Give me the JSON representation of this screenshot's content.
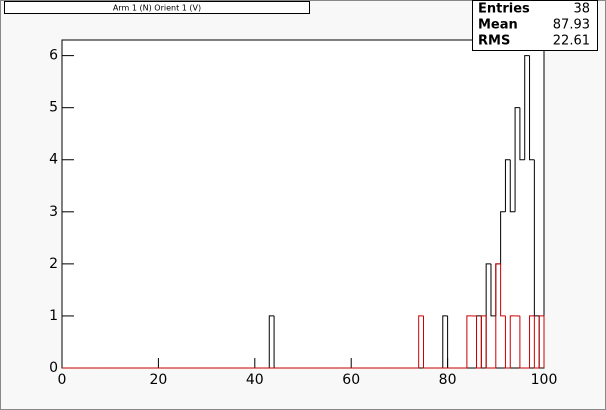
{
  "chart_data": {
    "type": "histogram",
    "title": "Arm 1 (N) Orient 1 (V)",
    "bins": [
      0,
      1,
      2,
      3,
      4,
      5,
      6,
      7,
      8,
      9,
      10,
      11,
      12,
      13,
      14,
      15,
      16,
      17,
      18,
      19,
      20,
      21,
      22,
      23,
      24,
      25,
      26,
      27,
      28,
      29,
      30,
      31,
      32,
      33,
      34,
      35,
      36,
      37,
      38,
      39,
      40,
      41,
      42,
      43,
      44,
      45,
      46,
      47,
      48,
      49,
      50,
      51,
      52,
      53,
      54,
      55,
      56,
      57,
      58,
      59,
      60,
      61,
      62,
      63,
      64,
      65,
      66,
      67,
      68,
      69,
      70,
      71,
      72,
      73,
      74,
      75,
      76,
      77,
      78,
      79,
      80,
      81,
      82,
      83,
      84,
      85,
      86,
      87,
      88,
      89,
      90,
      91,
      92,
      93,
      94,
      95,
      96,
      97,
      98,
      99,
      100
    ],
    "series": [
      {
        "color": "#000000",
        "values": [
          0,
          0,
          0,
          0,
          0,
          0,
          0,
          0,
          0,
          0,
          0,
          0,
          0,
          0,
          0,
          0,
          0,
          0,
          0,
          0,
          0,
          0,
          0,
          0,
          0,
          0,
          0,
          0,
          0,
          0,
          0,
          0,
          0,
          0,
          0,
          0,
          0,
          0,
          0,
          0,
          0,
          0,
          0,
          1,
          0,
          0,
          0,
          0,
          0,
          0,
          0,
          0,
          0,
          0,
          0,
          0,
          0,
          0,
          0,
          0,
          0,
          0,
          0,
          0,
          0,
          0,
          0,
          0,
          0,
          0,
          0,
          0,
          0,
          0,
          0,
          0,
          0,
          0,
          0,
          1,
          0,
          0,
          0,
          0,
          0,
          0,
          1,
          0,
          2,
          1,
          2,
          3,
          4,
          3,
          5,
          4,
          6,
          4,
          1,
          0
        ]
      },
      {
        "color": "#cc0000",
        "values": [
          0,
          0,
          0,
          0,
          0,
          0,
          0,
          0,
          0,
          0,
          0,
          0,
          0,
          0,
          0,
          0,
          0,
          0,
          0,
          0,
          0,
          0,
          0,
          0,
          0,
          0,
          0,
          0,
          0,
          0,
          0,
          0,
          0,
          0,
          0,
          0,
          0,
          0,
          0,
          0,
          0,
          0,
          0,
          0,
          0,
          0,
          0,
          0,
          0,
          0,
          0,
          0,
          0,
          0,
          0,
          0,
          0,
          0,
          0,
          0,
          0,
          0,
          0,
          0,
          0,
          0,
          0,
          0,
          0,
          0,
          0,
          0,
          0,
          0,
          1,
          0,
          0,
          0,
          0,
          0,
          0,
          0,
          0,
          0,
          1,
          1,
          0,
          1,
          0,
          0,
          2,
          1,
          0,
          1,
          1,
          0,
          0,
          1,
          0,
          1
        ]
      }
    ],
    "xlim": [
      0,
      100
    ],
    "xticks": [
      0,
      20,
      40,
      60,
      80,
      100
    ],
    "ylim": [
      0,
      6.3
    ],
    "yticks": [
      0,
      1,
      2,
      3,
      4,
      5,
      6
    ],
    "stats": [
      {
        "label": "Entries",
        "value": 38
      },
      {
        "label": "Mean",
        "value": 87.93
      },
      {
        "label": "RMS",
        "value": 22.61
      }
    ]
  }
}
